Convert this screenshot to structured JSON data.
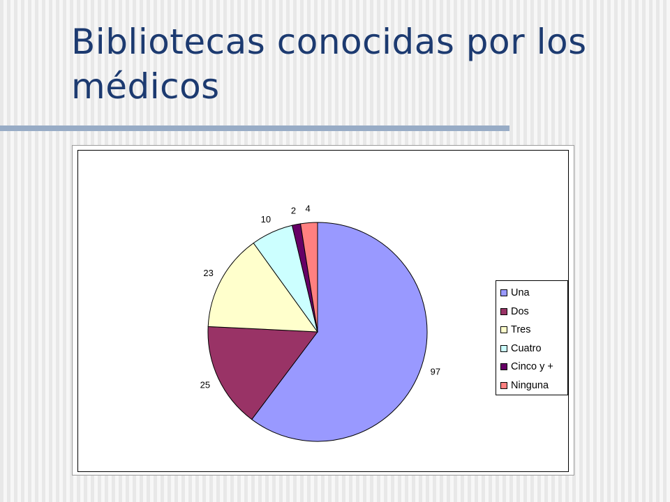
{
  "slide": {
    "title": "Bibliotecas conocidas por los médicos"
  },
  "chart_data": {
    "type": "pie",
    "title": "",
    "categories": [
      "Una",
      "Dos",
      "Tres",
      "Cuatro",
      "Cinco y +",
      "Ninguna"
    ],
    "values": [
      97,
      25,
      23,
      10,
      2,
      4
    ],
    "colors": [
      "#9999ff",
      "#993366",
      "#ffffcc",
      "#ccffff",
      "#660066",
      "#ff8080"
    ],
    "data_labels": [
      "97",
      "25",
      "23",
      "10",
      "2",
      "4"
    ],
    "legend_position": "right",
    "start_angle": "12 o'clock",
    "direction": "clockwise"
  }
}
